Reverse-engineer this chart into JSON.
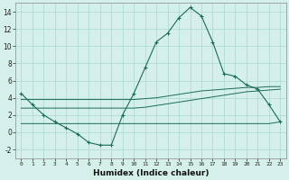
{
  "xlabel": "Humidex (Indice chaleur)",
  "background_color": "#d5f0eb",
  "grid_color": "#aad8d0",
  "line_color": "#1a6b5a",
  "xlim": [
    -0.5,
    23.5
  ],
  "ylim": [
    -3,
    15
  ],
  "xtick_labels": [
    "0",
    "1",
    "2",
    "3",
    "4",
    "5",
    "6",
    "7",
    "8",
    "9",
    "10",
    "11",
    "12",
    "13",
    "14",
    "15",
    "16",
    "17",
    "18",
    "19",
    "20",
    "21",
    "22",
    "23"
  ],
  "ytick_values": [
    -2,
    0,
    2,
    4,
    6,
    8,
    10,
    12,
    14
  ],
  "main_line": [
    4.5,
    3.2,
    2.0,
    1.2,
    0.5,
    -0.2,
    -1.2,
    -1.5,
    -1.5,
    2.0,
    4.5,
    7.5,
    10.5,
    11.5,
    13.3,
    14.5,
    13.5,
    10.5,
    6.8,
    6.5,
    5.5,
    5.0,
    3.2,
    1.2
  ],
  "line2": [
    3.8,
    3.8,
    3.8,
    3.8,
    3.8,
    3.8,
    3.8,
    3.8,
    3.8,
    3.8,
    3.8,
    3.9,
    4.0,
    4.2,
    4.4,
    4.6,
    4.8,
    4.9,
    5.0,
    5.1,
    5.2,
    5.2,
    5.3,
    5.3
  ],
  "line3": [
    2.8,
    2.8,
    2.8,
    2.8,
    2.8,
    2.8,
    2.8,
    2.8,
    2.8,
    2.8,
    2.8,
    2.9,
    3.1,
    3.3,
    3.5,
    3.7,
    3.9,
    4.1,
    4.3,
    4.5,
    4.7,
    4.8,
    4.9,
    5.0
  ],
  "line4": [
    1.0,
    1.0,
    1.0,
    1.0,
    1.0,
    1.0,
    1.0,
    1.0,
    1.0,
    1.0,
    1.0,
    1.0,
    1.0,
    1.0,
    1.0,
    1.0,
    1.0,
    1.0,
    1.0,
    1.0,
    1.0,
    1.0,
    1.0,
    1.2
  ]
}
